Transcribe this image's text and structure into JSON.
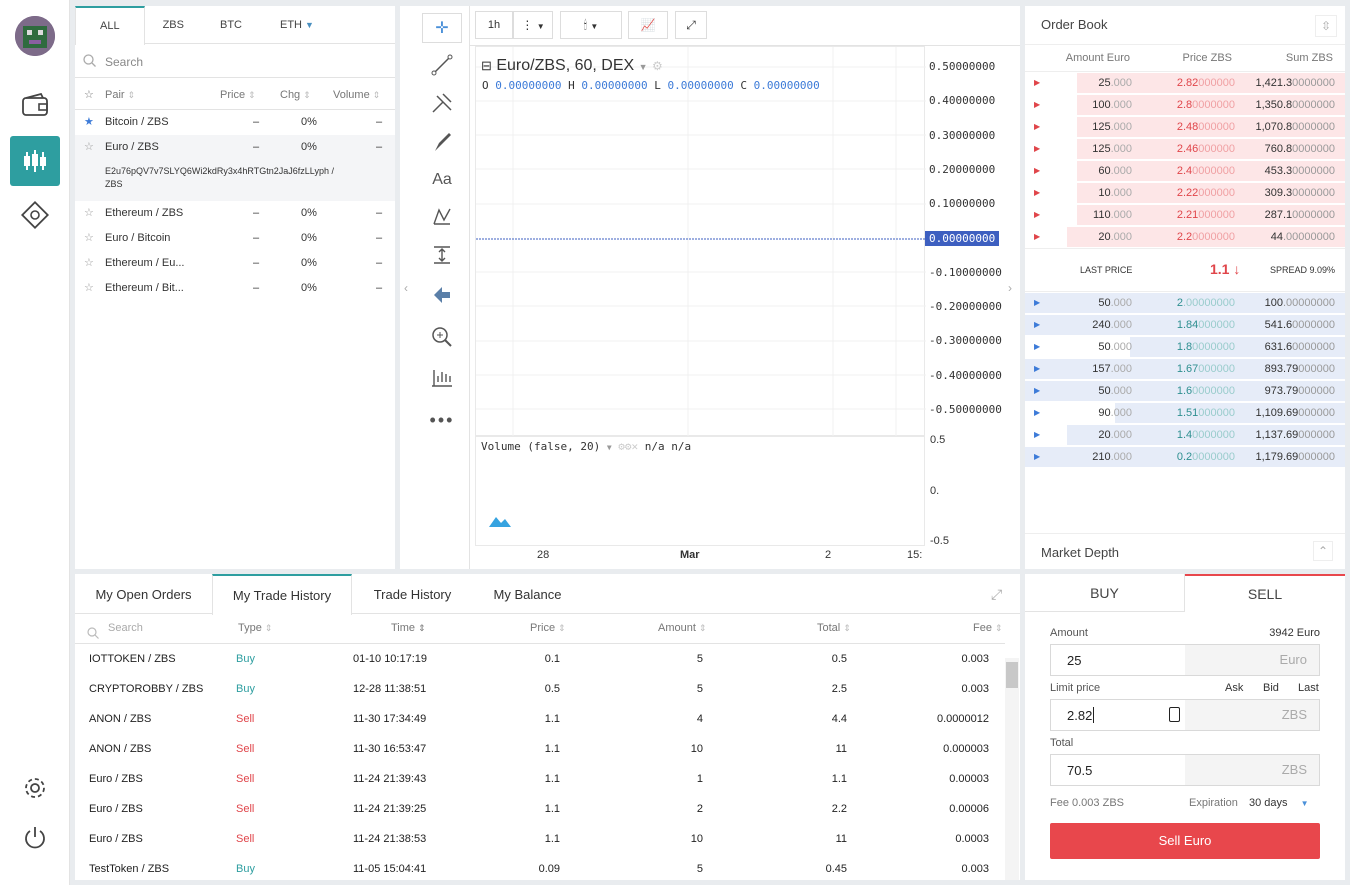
{
  "markets": {
    "tabs": [
      "ALL",
      "ZBS",
      "BTC",
      "ETH"
    ],
    "search_placeholder": "Search",
    "headers": [
      "Pair",
      "Price",
      "Chg",
      "Volume"
    ],
    "rows": [
      {
        "pair": "Bitcoin / ZBS",
        "price": "–",
        "chg": "0%",
        "vol": "–"
      },
      {
        "pair": "Euro / ZBS",
        "price": "–",
        "chg": "0%",
        "vol": "–",
        "detail": "E2u76pQV7v7SLYQ6Wi2kdRy3x4hRTGtn2JaJ6fzLLyph / ZBS"
      },
      {
        "pair": "Ethereum / ZBS",
        "price": "–",
        "chg": "0%",
        "vol": "–"
      },
      {
        "pair": "Euro / Bitcoin",
        "price": "–",
        "chg": "0%",
        "vol": "–"
      },
      {
        "pair": "Ethereum / Eu...",
        "price": "–",
        "chg": "0%",
        "vol": "–"
      },
      {
        "pair": "Ethereum / Bit...",
        "price": "–",
        "chg": "0%",
        "vol": "–"
      }
    ]
  },
  "chart": {
    "interval": "1h",
    "symbol": "Euro/ZBS, 60, DEX",
    "ohlc": {
      "o_label": "O",
      "o": "0.00000000",
      "h_label": "H",
      "h": "0.00000000",
      "l_label": "L",
      "l": "0.00000000",
      "c_label": "C",
      "c": "0.00000000"
    },
    "y_ticks": [
      "0.50000000",
      "0.40000000",
      "0.30000000",
      "0.20000000",
      "0.10000000",
      "0.00000000",
      "-0.10000000",
      "-0.20000000",
      "-0.30000000",
      "-0.40000000",
      "-0.50000000"
    ],
    "volume_label": "Volume (false, 20)",
    "volume_values": "n/a n/a",
    "vol_ticks": [
      "0.5",
      "0.",
      "-0.5"
    ],
    "x_ticks": [
      "28",
      "Mar",
      "2",
      "15:"
    ]
  },
  "orderbook": {
    "title": "Order Book",
    "headers": [
      "Amount Euro",
      "Price ZBS",
      "Sum ZBS"
    ],
    "asks": [
      {
        "a1": "25",
        "a2": ".000",
        "p1": "2.82",
        "p2": "000000",
        "s1": "1,421.3",
        "s2": "0000000"
      },
      {
        "a1": "100",
        "a2": ".000",
        "p1": "2.8",
        "p2": "0000000",
        "s1": "1,350.8",
        "s2": "0000000"
      },
      {
        "a1": "125",
        "a2": ".000",
        "p1": "2.48",
        "p2": "000000",
        "s1": "1,070.8",
        "s2": "0000000"
      },
      {
        "a1": "125",
        "a2": ".000",
        "p1": "2.46",
        "p2": "000000",
        "s1": "760.8",
        "s2": "0000000"
      },
      {
        "a1": "60",
        "a2": ".000",
        "p1": "2.4",
        "p2": "0000000",
        "s1": "453.3",
        "s2": "0000000"
      },
      {
        "a1": "10",
        "a2": ".000",
        "p1": "2.22",
        "p2": "000000",
        "s1": "309.3",
        "s2": "0000000"
      },
      {
        "a1": "110",
        "a2": ".000",
        "p1": "2.21",
        "p2": "000000",
        "s1": "287.1",
        "s2": "0000000"
      },
      {
        "a1": "20",
        "a2": ".000",
        "p1": "2.2",
        "p2": "0000000",
        "s1": "44",
        "s2": ".00000000"
      }
    ],
    "last_price_label": "LAST PRICE",
    "last_price": "1.1",
    "spread": "SPREAD 9.09%",
    "bids": [
      {
        "a1": "50",
        "a2": ".000",
        "p1": "2",
        "p2": ".00000000",
        "s1": "100",
        "s2": ".00000000"
      },
      {
        "a1": "240",
        "a2": ".000",
        "p1": "1.84",
        "p2": "000000",
        "s1": "541.6",
        "s2": "0000000"
      },
      {
        "a1": "50",
        "a2": ".000",
        "p1": "1.8",
        "p2": "0000000",
        "s1": "631.6",
        "s2": "0000000"
      },
      {
        "a1": "157",
        "a2": ".000",
        "p1": "1.67",
        "p2": "000000",
        "s1": "893.79",
        "s2": "000000"
      },
      {
        "a1": "50",
        "a2": ".000",
        "p1": "1.6",
        "p2": "0000000",
        "s1": "973.79",
        "s2": "000000"
      },
      {
        "a1": "90",
        "a2": ".000",
        "p1": "1.51",
        "p2": "000000",
        "s1": "1,109.69",
        "s2": "000000"
      },
      {
        "a1": "20",
        "a2": ".000",
        "p1": "1.4",
        "p2": "0000000",
        "s1": "1,137.69",
        "s2": "000000"
      },
      {
        "a1": "210",
        "a2": ".000",
        "p1": "0.2",
        "p2": "0000000",
        "s1": "1,179.69",
        "s2": "000000"
      }
    ],
    "market_depth": "Market Depth"
  },
  "history": {
    "tabs": [
      "My Open Orders",
      "My Trade History",
      "Trade History",
      "My Balance"
    ],
    "search_placeholder": "Search",
    "headers": [
      "Type",
      "Time",
      "Price",
      "Amount",
      "Total",
      "Fee"
    ],
    "rows": [
      {
        "pair": "IOTTOKEN / ZBS",
        "type": "Buy",
        "time": "01-10 10:17:19",
        "price": "0.1",
        "amount": "5",
        "total": "0.5",
        "fee": "0.003"
      },
      {
        "pair": "CRYPTOROBBY / ZBS",
        "type": "Buy",
        "time": "12-28 11:38:51",
        "price": "0.5",
        "amount": "5",
        "total": "2.5",
        "fee": "0.003"
      },
      {
        "pair": "ANON / ZBS",
        "type": "Sell",
        "time": "11-30 17:34:49",
        "price": "1.1",
        "amount": "4",
        "total": "4.4",
        "fee": "0.0000012"
      },
      {
        "pair": "ANON / ZBS",
        "type": "Sell",
        "time": "11-30 16:53:47",
        "price": "1.1",
        "amount": "10",
        "total": "11",
        "fee": "0.000003"
      },
      {
        "pair": "Euro / ZBS",
        "type": "Sell",
        "time": "11-24 21:39:43",
        "price": "1.1",
        "amount": "1",
        "total": "1.1",
        "fee": "0.00003"
      },
      {
        "pair": "Euro / ZBS",
        "type": "Sell",
        "time": "11-24 21:39:25",
        "price": "1.1",
        "amount": "2",
        "total": "2.2",
        "fee": "0.00006"
      },
      {
        "pair": "Euro / ZBS",
        "type": "Sell",
        "time": "11-24 21:38:53",
        "price": "1.1",
        "amount": "10",
        "total": "11",
        "fee": "0.0003"
      },
      {
        "pair": "TestToken / ZBS",
        "type": "Buy",
        "time": "11-05 15:04:41",
        "price": "0.09",
        "amount": "5",
        "total": "0.45",
        "fee": "0.003"
      }
    ]
  },
  "order": {
    "buy_tab": "BUY",
    "sell_tab": "SELL",
    "amount_label": "Amount",
    "balance": "3942 Euro",
    "amount": "25",
    "amount_unit": "Euro",
    "limit_label": "Limit price",
    "ask": "Ask",
    "bid": "Bid",
    "last": "Last",
    "price": "2.82",
    "price_unit": "ZBS",
    "total_label": "Total",
    "total": "70.5",
    "total_unit": "ZBS",
    "fee": "Fee 0.003 ZBS",
    "expiration_label": "Expiration",
    "expiration": "30 days",
    "submit": "Sell Euro"
  },
  "colors": {
    "accent": "#2e9ea0",
    "sell": "#e8474c",
    "buy": "#3d7bd8"
  }
}
